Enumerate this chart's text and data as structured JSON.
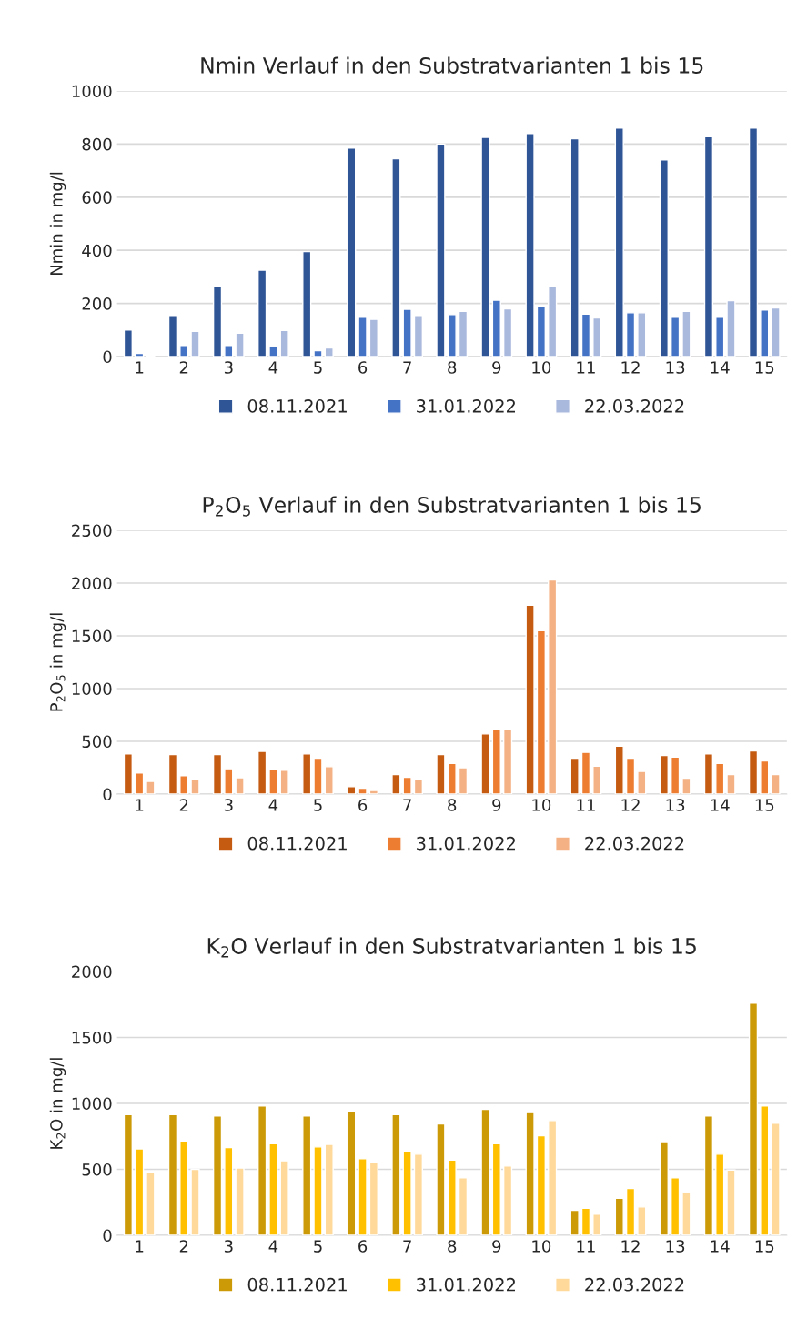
{
  "chart_data": [
    {
      "type": "bar",
      "title": "Nmin Verlauf in den Substratvarianten 1 bis 15",
      "ylabel": "Nmin in mg/l",
      "categories": [
        "1",
        "2",
        "3",
        "4",
        "5",
        "6",
        "7",
        "8",
        "9",
        "10",
        "11",
        "12",
        "13",
        "14",
        "15"
      ],
      "ylim": [
        0,
        1000
      ],
      "yticks": [
        0,
        200,
        400,
        600,
        800,
        1000
      ],
      "grid": "y",
      "legend": "bottom",
      "series": [
        {
          "name": "08.11.2021",
          "color": "#2f5597",
          "values": [
            100,
            155,
            265,
            325,
            395,
            785,
            745,
            800,
            825,
            840,
            820,
            860,
            740,
            828,
            860
          ]
        },
        {
          "name": "31.01.2022",
          "color": "#4472c4",
          "values": [
            12,
            42,
            42,
            38,
            22,
            148,
            178,
            158,
            212,
            190,
            160,
            165,
            148,
            148,
            175
          ]
        },
        {
          "name": "22.03.2022",
          "color": "#a9b8dd",
          "values": [
            5,
            95,
            88,
            98,
            32,
            140,
            155,
            170,
            180,
            265,
            145,
            165,
            170,
            210,
            183
          ]
        }
      ]
    },
    {
      "type": "bar",
      "title": "P$_{2}$O$_{5}$ Verlauf in den Substratvarianten 1 bis 15",
      "ylabel": "P$_{2}$O$_{5}$ in mg/l",
      "categories": [
        "1",
        "2",
        "3",
        "4",
        "5",
        "6",
        "7",
        "8",
        "9",
        "10",
        "11",
        "12",
        "13",
        "14",
        "15"
      ],
      "ylim": [
        0,
        2500
      ],
      "yticks": [
        0,
        500,
        1000,
        1500,
        2000,
        2500
      ],
      "grid": "y",
      "legend": "bottom",
      "series": [
        {
          "name": "08.11.2021",
          "color": "#c55a11",
          "values": [
            380,
            375,
            375,
            405,
            380,
            70,
            185,
            375,
            570,
            1790,
            340,
            455,
            365,
            380,
            410
          ]
        },
        {
          "name": "31.01.2022",
          "color": "#ed7d31",
          "values": [
            200,
            175,
            240,
            235,
            340,
            55,
            160,
            290,
            615,
            1550,
            395,
            340,
            350,
            290,
            315
          ]
        },
        {
          "name": "22.03.2022",
          "color": "#f4b183",
          "values": [
            120,
            135,
            155,
            225,
            260,
            35,
            135,
            250,
            615,
            2030,
            265,
            215,
            150,
            185,
            185
          ]
        }
      ]
    },
    {
      "type": "bar",
      "title": "K$_{2}$O Verlauf in den Substratvarianten 1 bis 15",
      "ylabel": "K$_{2}$O in mg/l",
      "categories": [
        "1",
        "2",
        "3",
        "4",
        "5",
        "6",
        "7",
        "8",
        "9",
        "10",
        "11",
        "12",
        "13",
        "14",
        "15"
      ],
      "ylim": [
        0,
        2000
      ],
      "yticks": [
        0,
        500,
        1000,
        1500,
        2000
      ],
      "grid": "y",
      "legend": "bottom",
      "series": [
        {
          "name": "08.11.2021",
          "color": "#cc9a06",
          "values": [
            915,
            915,
            905,
            980,
            905,
            940,
            915,
            845,
            955,
            930,
            190,
            280,
            710,
            905,
            1760
          ]
        },
        {
          "name": "31.01.2022",
          "color": "#ffc000",
          "values": [
            655,
            715,
            665,
            695,
            670,
            580,
            640,
            570,
            695,
            755,
            205,
            355,
            435,
            615,
            980
          ]
        },
        {
          "name": "22.03.2022",
          "color": "#ffd99a",
          "values": [
            480,
            500,
            510,
            565,
            690,
            550,
            615,
            435,
            525,
            870,
            160,
            215,
            325,
            495,
            850
          ]
        }
      ]
    }
  ]
}
